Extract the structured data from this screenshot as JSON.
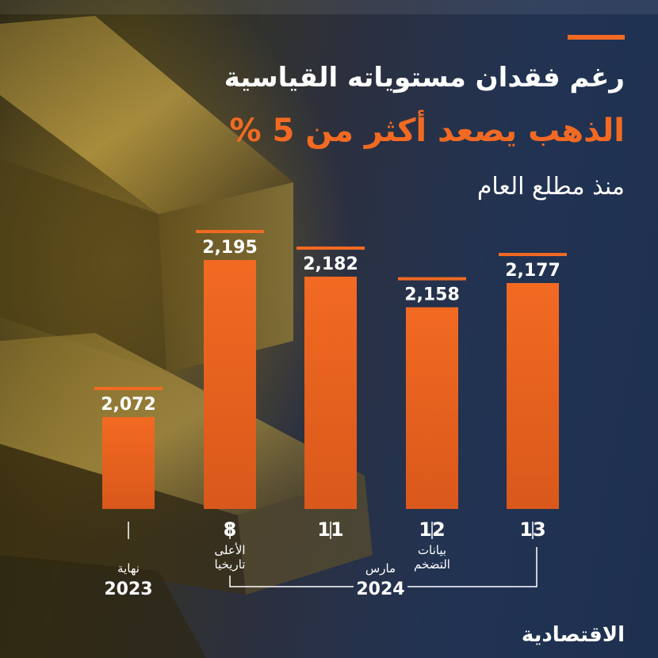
{
  "header": {
    "title": "رغم فقدان مستوياته القياسية",
    "subtitle": "الذهب يصعد أكثر من 5 %",
    "subtitle2": "منذ مطلع العام"
  },
  "logo": "الاقتصادية",
  "colors": {
    "accent": "#f26a22",
    "text": "#ffffff"
  },
  "chart_data": {
    "type": "bar",
    "title": "الذهب يصعد أكثر من 5 %",
    "categories": [
      "نهاية 2023",
      "8",
      "11",
      "12",
      "13"
    ],
    "values": [
      2072,
      2195,
      2182,
      2158,
      2177
    ],
    "data_labels": [
      "2,072",
      "2,195",
      "2,182",
      "2,158",
      "2,177"
    ],
    "day_labels": [
      "",
      "8",
      "11",
      "12",
      "13"
    ],
    "notes": [
      "نهاية",
      "الأعلى تاريخيا",
      "",
      "بيانات التضخم",
      ""
    ],
    "year_labels": {
      "end_2023": "2023",
      "march": "مارس",
      "year_2024": "2024"
    },
    "ylim": [
      2000,
      2200
    ],
    "grid": false,
    "legend": "none"
  }
}
